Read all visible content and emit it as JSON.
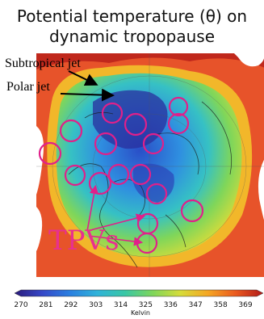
{
  "title_line1": "Potential temperature (θ) on",
  "title_line2": "dynamic tropopause",
  "annotations": {
    "subtropical_jet": "Subtropical jet",
    "polar_jet": "Polar jet",
    "tpvs": "TPVs"
  },
  "colorbar": {
    "unit": "Kelvin",
    "ticks": [
      "270",
      "281",
      "292",
      "303",
      "314",
      "325",
      "336",
      "347",
      "358",
      "369"
    ],
    "min": 270,
    "max": 374,
    "colors": [
      "#2a1a7a",
      "#3548c8",
      "#2a7fe0",
      "#2fb3d9",
      "#39c7a5",
      "#7fd65a",
      "#d6dc3a",
      "#f5a623",
      "#ea5a1f",
      "#b11a1a"
    ]
  },
  "colors": {
    "circle": "#e0208a",
    "arrow": "#000000"
  },
  "map": {
    "projection": "polar stereographic (Northern Hemisphere)",
    "circled_features": "tropopause polar vortices"
  }
}
